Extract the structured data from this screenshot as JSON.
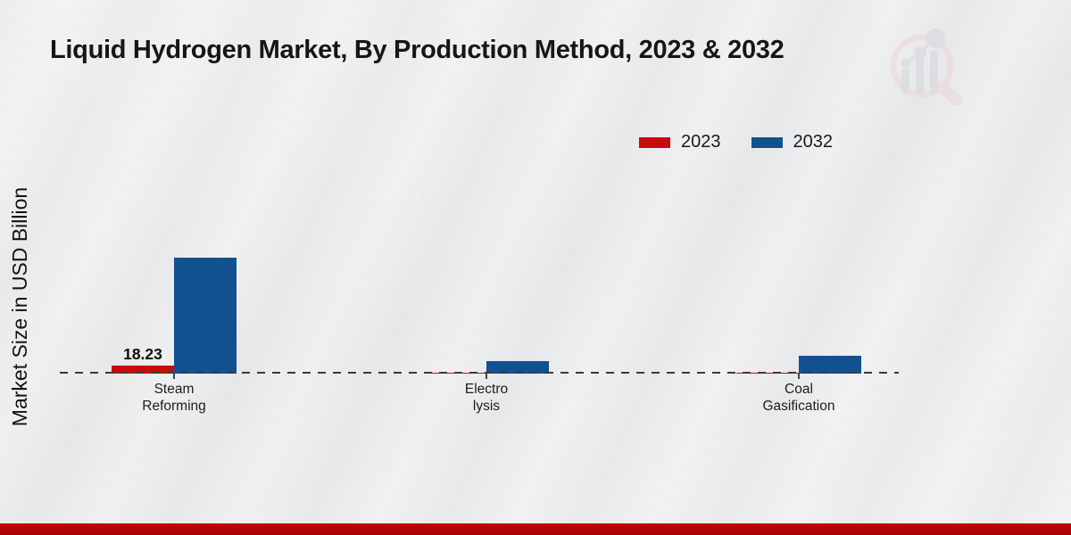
{
  "title": "Liquid Hydrogen Market, By Production Method, 2023 & 2032",
  "y_axis_label": "Market Size in USD Billion",
  "legend": {
    "items": [
      {
        "label": "2023",
        "color": "#c80c0c"
      },
      {
        "label": "2032",
        "color": "#11518f"
      }
    ]
  },
  "colors": {
    "bar_2023": "#c80c0c",
    "bar_2032": "#11518f",
    "axis_line": "#3a3a3a",
    "footer_strip": "#b90404",
    "background": "#e9eaeb",
    "title_text": "#161616"
  },
  "icons": {
    "watermark": "magnifier-barchart-logo"
  },
  "chart_data": {
    "type": "bar",
    "categories": [
      "Steam Reforming",
      "Electrolysis",
      "Coal Gasification"
    ],
    "category_label_lines": [
      [
        "Steam",
        "Reforming"
      ],
      [
        "Electro",
        "lysis"
      ],
      [
        "Coal",
        "Gasification"
      ]
    ],
    "series": [
      {
        "name": "2023",
        "color": "#c80c0c",
        "values": [
          18.23,
          1.5,
          2
        ]
      },
      {
        "name": "2032",
        "color": "#11518f",
        "values": [
          250,
          27,
          38
        ]
      }
    ],
    "title": "Liquid Hydrogen Market, By Production Method, 2023 & 2032",
    "xlabel": "",
    "ylabel": "Market Size in USD Billion",
    "ylim": [
      0,
      270
    ],
    "grid": false,
    "legend_position": "top-right",
    "baseline_style": "dashed",
    "data_labels": [
      {
        "series": "2023",
        "category": "Steam Reforming",
        "text": "18.23"
      }
    ]
  }
}
